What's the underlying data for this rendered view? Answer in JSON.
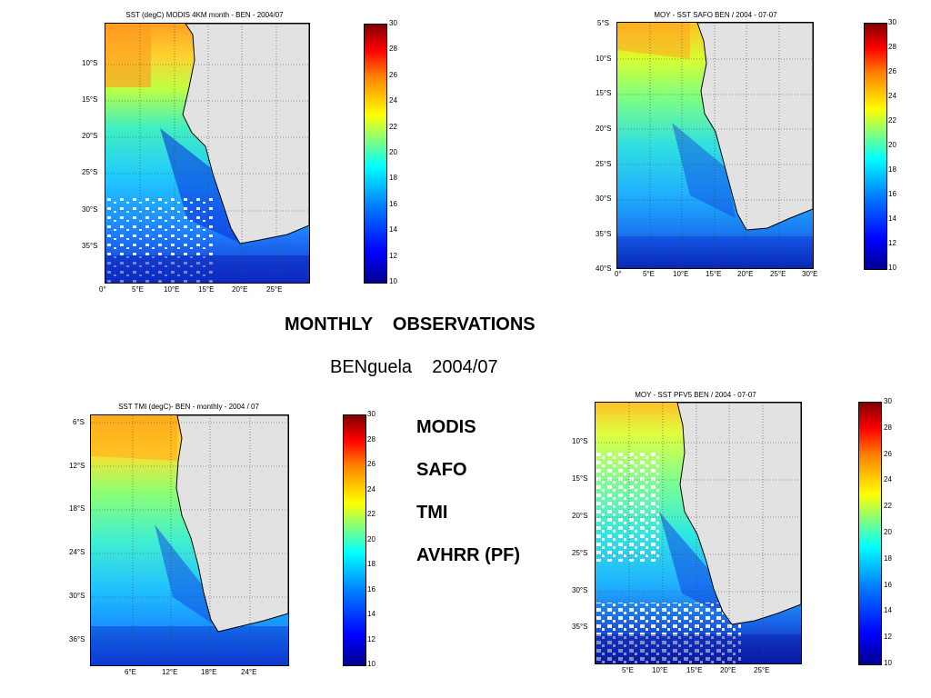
{
  "heading": {
    "title": "MONTHLY    OBSERVATIONS",
    "subtitle": "BENguela    2004/07"
  },
  "datasets": [
    "MODIS",
    "SAFO",
    "TMI",
    "AVHRR (PF)"
  ],
  "colorbar_labels": [
    "30",
    "28",
    "26",
    "24",
    "22",
    "20",
    "18",
    "16",
    "14",
    "12",
    "10"
  ],
  "colors": {
    "land": "#e2e2e2",
    "coast": "#000000",
    "grid": "#555555"
  },
  "maps": [
    {
      "title": "SST (degC) MODIS 4KM  month - BEN - 2004/07",
      "lat_labels": [
        "10°S",
        "15°S",
        "20°S",
        "25°S",
        "30°S",
        "35°S"
      ],
      "lon_labels": [
        "0°",
        "5°E",
        "10°E",
        "15°E",
        "20°E",
        "25°E"
      ]
    },
    {
      "title": "MOY - SST  SAFO  BEN / 2004  - 07-07",
      "lat_labels": [
        "5°S",
        "10°S",
        "15°S",
        "20°S",
        "25°S",
        "30°S",
        "35°S",
        "40°S"
      ],
      "lon_labels": [
        "0°",
        "5°E",
        "10°E",
        "15°E",
        "20°E",
        "25°E",
        "30°E"
      ]
    },
    {
      "title": "SST TMI  (degC)- BEN - monthly - 2004 / 07",
      "lat_labels": [
        "6°S",
        "12°S",
        "18°S",
        "24°S",
        "30°S",
        "36°S"
      ],
      "lon_labels": [
        "6°E",
        "12°E",
        "18°E",
        "24°E"
      ]
    },
    {
      "title": "MOY - SST  PFV5  BEN / 2004  - 07-07",
      "lat_labels": [
        "10°S",
        "15°S",
        "20°S",
        "25°S",
        "30°S",
        "35°S"
      ],
      "lon_labels": [
        "5°E",
        "10°E",
        "15°E",
        "20°E",
        "25°E"
      ]
    }
  ]
}
